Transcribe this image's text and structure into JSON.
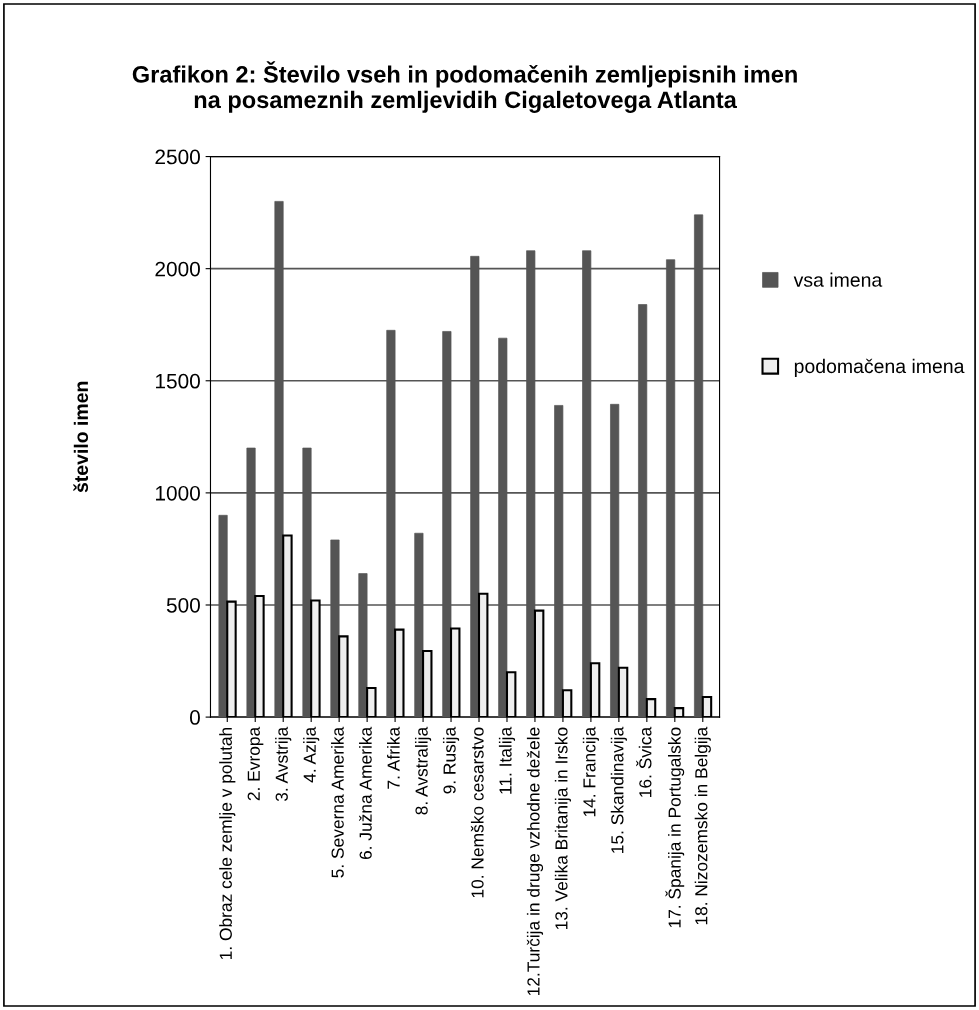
{
  "chart_data": {
    "type": "bar",
    "title": "Grafikon 2: Število vseh in podomačenih zemljepisnih imen\nna posameznih zemljevidih Cigaletovega Atlanta",
    "ylabel": "število imen",
    "categories": [
      "1. Obraz cele zemlje v polutah",
      "2. Evropa",
      "3. Avstrija",
      "4. Azija",
      "5. Severna Amerika",
      "6. Južna Amerika",
      "7. Afrika",
      "8. Avstralija",
      "9. Rusija",
      "10. Nemško cesarstvo",
      "11. Italija",
      "12.Turčija in druge vzhodne dežele",
      "13. Velika Britanija in Irsko",
      "14. Francija",
      "15. Skandinavija",
      "16. Švica",
      "17. Španija in Portugalsko",
      "18. Nizozemsko in Belgija"
    ],
    "series": [
      {
        "name": "vsa imena",
        "color": "#555555",
        "values": [
          900,
          1200,
          2300,
          1200,
          790,
          640,
          1725,
          820,
          1720,
          2055,
          1690,
          2080,
          1390,
          2080,
          1395,
          1840,
          2040,
          2240
        ]
      },
      {
        "name": "podomačena imena",
        "color": "#eeeeee",
        "values": [
          515,
          540,
          810,
          520,
          360,
          130,
          390,
          295,
          395,
          550,
          200,
          475,
          120,
          240,
          220,
          80,
          40,
          90
        ]
      }
    ],
    "ylim": [
      0,
      2500
    ],
    "yticks": [
      0,
      500,
      1000,
      1500,
      2000,
      2500
    ],
    "grid": "y",
    "legend": "right"
  }
}
